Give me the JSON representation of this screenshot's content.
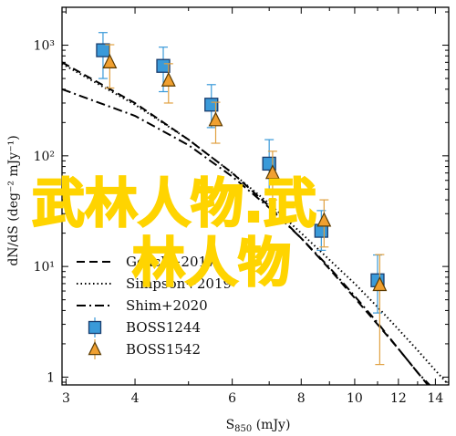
{
  "chart_data": {
    "type": "scatter",
    "xlabel": "S",
    "xlabel_sub": "850",
    "xlabel_unit": " (mJy)",
    "ylabel": "dN/dS (deg⁻² mJy⁻¹)",
    "x_scale": "log",
    "y_scale": "log",
    "xlim": [
      2.95,
      14.8
    ],
    "ylim": [
      0.85,
      2200
    ],
    "x_ticks": [
      3,
      4,
      6,
      8,
      10,
      12,
      14
    ],
    "x_tick_labels": [
      "3",
      "4",
      "6",
      "8",
      "10",
      "12",
      "14"
    ],
    "y_ticks": [
      1,
      10,
      100,
      1000
    ],
    "y_tick_labels": [
      "1",
      "10¹",
      "10²",
      "10³"
    ],
    "legend_position": "lower-left",
    "series": [
      {
        "name": "Geach+2017",
        "style": "dashed",
        "color": "#000000",
        "x": [
          2.95,
          4,
          5,
          6,
          7,
          8,
          9,
          10,
          11,
          12,
          13,
          14
        ],
        "y": [
          700,
          300,
          140,
          70,
          35,
          18,
          9.5,
          5.2,
          3.0,
          1.8,
          1.1,
          0.7
        ]
      },
      {
        "name": "Simpson+2019",
        "style": "dotted",
        "color": "#000000",
        "x": [
          2.95,
          4,
          5,
          6,
          7,
          8,
          9,
          10,
          11,
          12,
          13,
          14,
          14.8
        ],
        "y": [
          680,
          290,
          140,
          70,
          37,
          20,
          11.5,
          7.0,
          4.3,
          2.7,
          1.75,
          1.15,
          0.85
        ]
      },
      {
        "name": "Shim+2020",
        "style": "dashdot",
        "color": "#000000",
        "x": [
          2.95,
          4,
          5,
          6,
          7,
          8,
          9,
          10,
          11,
          12,
          13,
          14
        ],
        "y": [
          400,
          230,
          125,
          65,
          34,
          18,
          9.8,
          5.4,
          3.1,
          1.8,
          1.1,
          0.75
        ]
      },
      {
        "name": "BOSS1244",
        "marker": "square",
        "color": "#3a9ad9",
        "x": [
          3.5,
          4.5,
          5.5,
          7.0,
          8.7,
          11.0
        ],
        "y": [
          900,
          650,
          290,
          85,
          21,
          7.5
        ],
        "y_err_low": [
          400,
          270,
          110,
          38,
          7,
          3.7
        ],
        "y_err_high": [
          400,
          310,
          150,
          55,
          11,
          5.2
        ]
      },
      {
        "name": "BOSS1542",
        "marker": "triangle",
        "color": "#f0a030",
        "x": [
          3.6,
          4.6,
          5.6,
          7.1,
          8.8,
          11.1
        ],
        "y": [
          700,
          480,
          210,
          70,
          26,
          6.8
        ],
        "y_err_low": [
          290,
          180,
          80,
          30,
          11,
          5.5
        ],
        "y_err_high": [
          310,
          200,
          95,
          40,
          14,
          6.0
        ]
      }
    ]
  },
  "watermark": {
    "line1": "武林人物.武",
    "line2": "林人物",
    "color": "#ffd400"
  }
}
